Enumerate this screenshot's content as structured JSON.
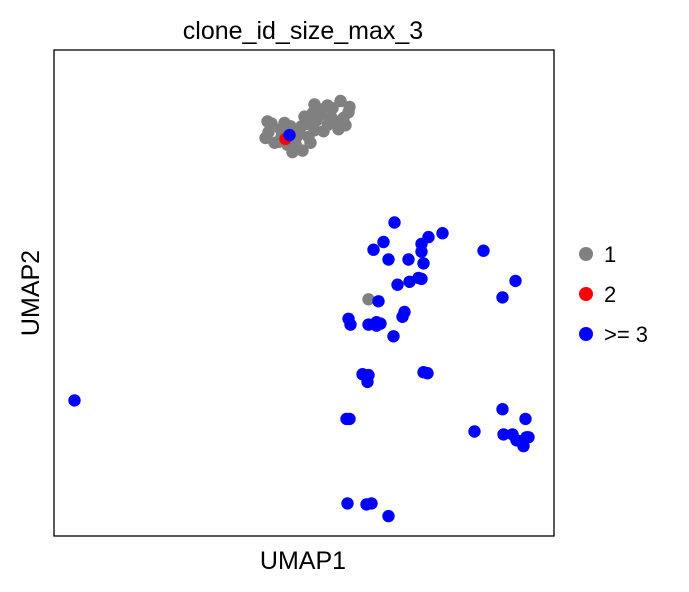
{
  "chart_data": {
    "type": "scatter",
    "title": "clone_id_size_max_3",
    "xlabel": "UMAP1",
    "ylabel": "UMAP2",
    "xlim": [
      0,
      100
    ],
    "ylim": [
      0,
      100
    ],
    "grid": false,
    "ticks": false,
    "legend_position": "right",
    "legend": [
      {
        "label": "1",
        "color": "#808080"
      },
      {
        "label": "2",
        "color": "#ff0000"
      },
      {
        "label": ">= 3",
        "color": "#0000ff"
      }
    ],
    "series": [
      {
        "name": "1",
        "color": "#808080",
        "points": [
          [
            52.1,
            88.8
          ],
          [
            53.7,
            87.8
          ],
          [
            55.7,
            88.0
          ],
          [
            57.3,
            89.5
          ],
          [
            59.1,
            88.3
          ],
          [
            54.8,
            84.6
          ],
          [
            50.7,
            84.8
          ],
          [
            43.5,
            84.9
          ],
          [
            45.3,
            83.7
          ],
          [
            47.3,
            84.3
          ],
          [
            49.1,
            82.9
          ],
          [
            50.9,
            82.1
          ],
          [
            48.3,
            80.7
          ],
          [
            46.9,
            83.3
          ],
          [
            42.9,
            83.1
          ],
          [
            44.9,
            81.1
          ],
          [
            46.7,
            80.5
          ],
          [
            48.5,
            82.1
          ],
          [
            52.5,
            85.5
          ],
          [
            51.7,
            87.0
          ],
          [
            55.5,
            86.1
          ],
          [
            57.9,
            86.0
          ],
          [
            58.3,
            84.5
          ],
          [
            56.9,
            83.7
          ],
          [
            53.9,
            83.3
          ],
          [
            52.1,
            83.5
          ],
          [
            53.5,
            86.7
          ],
          [
            54.7,
            88.6
          ],
          [
            49.7,
            79.3
          ],
          [
            47.7,
            79.0
          ],
          [
            44.1,
            80.9
          ],
          [
            42.3,
            81.9
          ],
          [
            42.7,
            85.3
          ],
          [
            46.1,
            85.0
          ],
          [
            45.5,
            82.1
          ],
          [
            50.1,
            86.3
          ],
          [
            56.5,
            85.1
          ],
          [
            58.9,
            87.2
          ],
          [
            51.3,
            80.9
          ],
          [
            49.5,
            84.3
          ],
          [
            62.9,
            48.7
          ]
        ]
      },
      {
        "name": "2",
        "color": "#ff0000",
        "points": [
          [
            46.3,
            81.7
          ]
        ]
      },
      {
        "name": ">= 3",
        "color": "#0000ff",
        "points": [
          [
            47.1,
            82.5
          ],
          [
            68.1,
            64.5
          ],
          [
            65.9,
            60.5
          ],
          [
            74.9,
            61.5
          ],
          [
            77.7,
            62.3
          ],
          [
            73.5,
            60.1
          ],
          [
            73.5,
            58.5
          ],
          [
            73.9,
            56.1
          ],
          [
            70.9,
            56.9
          ],
          [
            66.9,
            56.9
          ],
          [
            63.9,
            58.9
          ],
          [
            64.9,
            48.3
          ],
          [
            68.7,
            51.7
          ],
          [
            71.1,
            52.3
          ],
          [
            72.9,
            53.1
          ],
          [
            73.5,
            52.9
          ],
          [
            69.7,
            45.1
          ],
          [
            70.1,
            46.1
          ],
          [
            58.9,
            44.7
          ],
          [
            59.3,
            43.5
          ],
          [
            62.9,
            43.5
          ],
          [
            64.5,
            44.0
          ],
          [
            65.3,
            43.7
          ],
          [
            64.5,
            43.3
          ],
          [
            67.9,
            41.1
          ],
          [
            85.9,
            58.7
          ],
          [
            92.3,
            52.5
          ],
          [
            89.7,
            49.1
          ],
          [
            61.7,
            33.3
          ],
          [
            62.7,
            31.7
          ],
          [
            62.9,
            33.1
          ],
          [
            73.9,
            33.7
          ],
          [
            74.7,
            33.5
          ],
          [
            4.1,
            27.9
          ],
          [
            58.5,
            24.1
          ],
          [
            59.1,
            24.1
          ],
          [
            84.1,
            21.5
          ],
          [
            89.7,
            26.1
          ],
          [
            89.9,
            20.9
          ],
          [
            94.3,
            24.1
          ],
          [
            91.7,
            20.9
          ],
          [
            92.5,
            19.7
          ],
          [
            94.9,
            20.3
          ],
          [
            93.5,
            19.5
          ],
          [
            93.9,
            18.5
          ],
          [
            94.5,
            20.3
          ],
          [
            58.7,
            6.7
          ],
          [
            62.5,
            6.5
          ],
          [
            63.5,
            6.7
          ],
          [
            66.9,
            4.1
          ]
        ]
      }
    ]
  }
}
